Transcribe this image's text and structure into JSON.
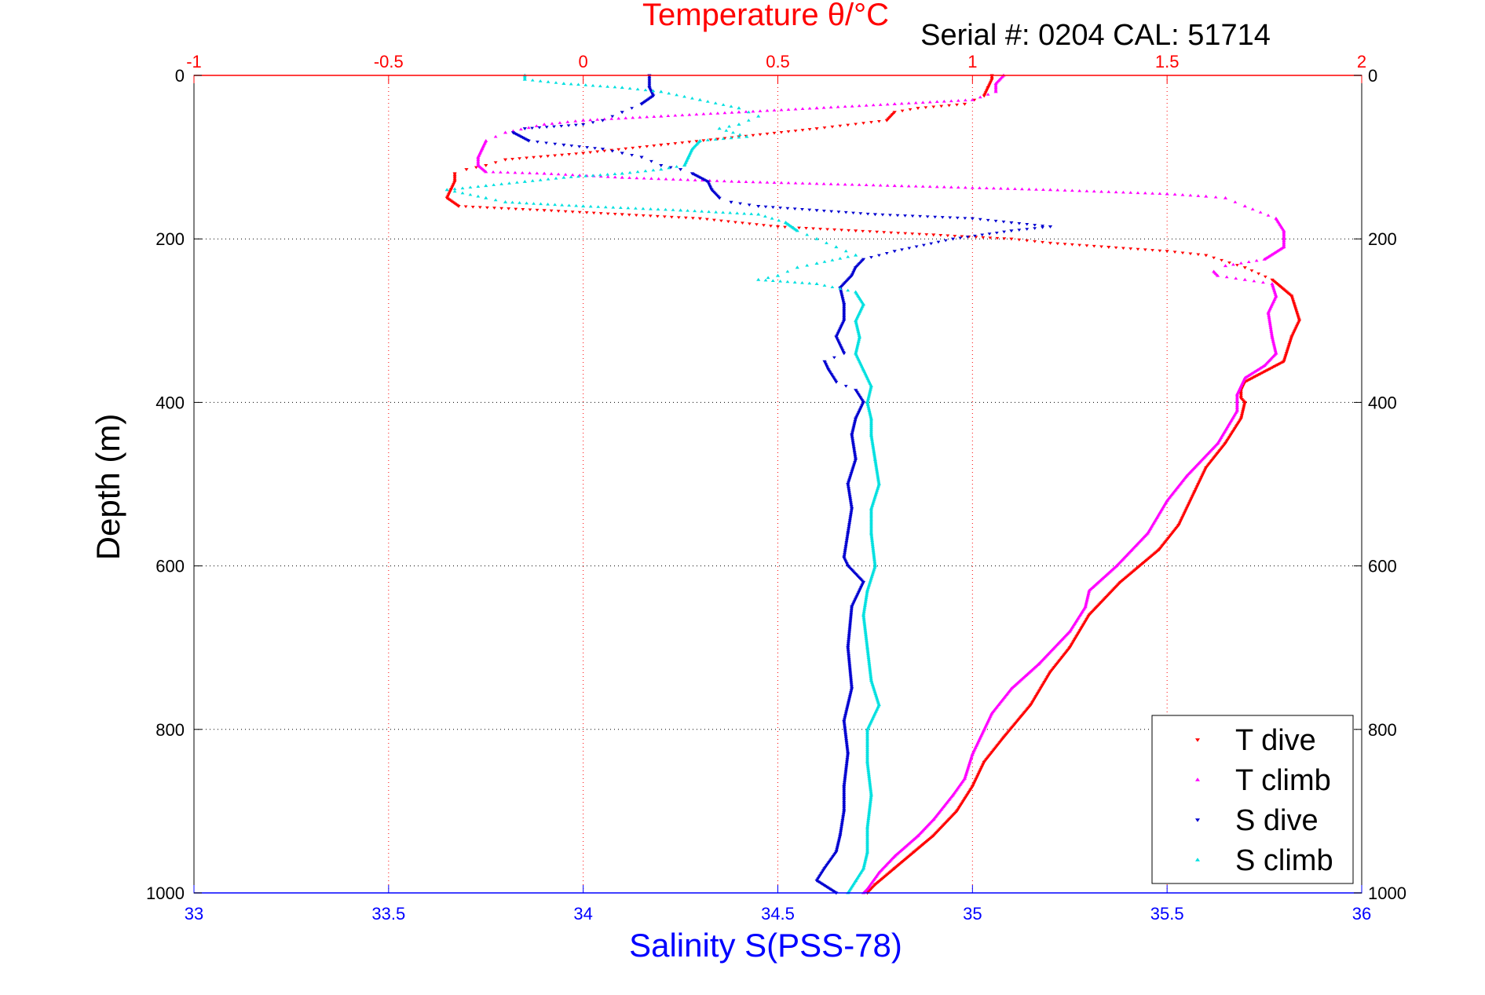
{
  "chart_data": {
    "type": "scatter",
    "title": "Temperature θ/°C",
    "subtitle": "Serial #: 0204  CAL: 51714",
    "xlabel": "Salinity S(PSS-78)",
    "ylabel": "Depth (m)",
    "x_bottom": {
      "label": "Salinity S(PSS-78)",
      "range": [
        33,
        36
      ],
      "ticks": [
        "33",
        "33.5",
        "34",
        "34.5",
        "35",
        "35.5",
        "36"
      ],
      "color": "#0000ff"
    },
    "x_top": {
      "label": "Temperature θ/°C",
      "range": [
        -1,
        2
      ],
      "ticks": [
        "-1",
        "-0.5",
        "0",
        "0.5",
        "1",
        "1.5",
        "2"
      ],
      "color": "#ff0000"
    },
    "y": {
      "range": [
        0,
        1000
      ],
      "reversed": true,
      "ticks": [
        "0",
        "200",
        "400",
        "600",
        "800",
        "1000"
      ]
    },
    "grid": true,
    "legend_position": "bottom-right",
    "series": [
      {
        "name": "T dive",
        "axis": "top",
        "color": "#ff0000",
        "marker": "triangle-down",
        "points": [
          [
            1.05,
            0
          ],
          [
            1.05,
            5
          ],
          [
            1.04,
            15
          ],
          [
            1.03,
            25
          ],
          [
            0.98,
            35
          ],
          [
            0.86,
            40
          ],
          [
            0.8,
            45
          ],
          [
            0.78,
            55
          ],
          [
            0.6,
            65
          ],
          [
            0.4,
            75
          ],
          [
            0.2,
            85
          ],
          [
            0.0,
            95
          ],
          [
            -0.2,
            103
          ],
          [
            -0.25,
            110
          ],
          [
            -0.3,
            115
          ],
          [
            -0.33,
            120
          ],
          [
            -0.33,
            130
          ],
          [
            -0.34,
            140
          ],
          [
            -0.35,
            150
          ],
          [
            -0.32,
            160
          ],
          [
            -0.1,
            165
          ],
          [
            0.1,
            170
          ],
          [
            0.3,
            175
          ],
          [
            0.5,
            185
          ],
          [
            0.7,
            190
          ],
          [
            0.9,
            195
          ],
          [
            1.1,
            200
          ],
          [
            1.2,
            205
          ],
          [
            1.35,
            210
          ],
          [
            1.5,
            215
          ],
          [
            1.6,
            220
          ],
          [
            1.7,
            235
          ],
          [
            1.77,
            250
          ],
          [
            1.82,
            270
          ],
          [
            1.84,
            300
          ],
          [
            1.82,
            320
          ],
          [
            1.8,
            350
          ],
          [
            1.7,
            375
          ],
          [
            1.69,
            385
          ],
          [
            1.69,
            395
          ],
          [
            1.7,
            400
          ],
          [
            1.69,
            420
          ],
          [
            1.65,
            450
          ],
          [
            1.6,
            480
          ],
          [
            1.57,
            510
          ],
          [
            1.53,
            550
          ],
          [
            1.48,
            580
          ],
          [
            1.38,
            620
          ],
          [
            1.3,
            660
          ],
          [
            1.25,
            700
          ],
          [
            1.2,
            730
          ],
          [
            1.15,
            770
          ],
          [
            1.08,
            810
          ],
          [
            1.03,
            840
          ],
          [
            1.0,
            870
          ],
          [
            0.96,
            900
          ],
          [
            0.9,
            930
          ],
          [
            0.85,
            950
          ],
          [
            0.8,
            970
          ],
          [
            0.75,
            990
          ],
          [
            0.73,
            1000
          ]
        ]
      },
      {
        "name": "T climb",
        "axis": "top",
        "color": "#ff00ff",
        "marker": "triangle-up",
        "points": [
          [
            1.08,
            0
          ],
          [
            1.06,
            10
          ],
          [
            1.06,
            20
          ],
          [
            1.0,
            30
          ],
          [
            0.8,
            35
          ],
          [
            0.6,
            40
          ],
          [
            0.4,
            45
          ],
          [
            0.2,
            50
          ],
          [
            0.0,
            55
          ],
          [
            -0.1,
            60
          ],
          [
            -0.2,
            70
          ],
          [
            -0.25,
            80
          ],
          [
            -0.26,
            90
          ],
          [
            -0.27,
            100
          ],
          [
            -0.27,
            110
          ],
          [
            -0.25,
            118
          ],
          [
            -0.1,
            120
          ],
          [
            0.1,
            125
          ],
          [
            0.4,
            130
          ],
          [
            0.8,
            135
          ],
          [
            1.2,
            140
          ],
          [
            1.5,
            145
          ],
          [
            1.6,
            148
          ],
          [
            1.65,
            150
          ],
          [
            1.7,
            160
          ],
          [
            1.78,
            175
          ],
          [
            1.8,
            190
          ],
          [
            1.8,
            210
          ],
          [
            1.75,
            225
          ],
          [
            1.65,
            233
          ],
          [
            1.62,
            240
          ],
          [
            1.63,
            245
          ],
          [
            1.7,
            250
          ],
          [
            1.77,
            255
          ],
          [
            1.78,
            270
          ],
          [
            1.76,
            290
          ],
          [
            1.77,
            320
          ],
          [
            1.78,
            340
          ],
          [
            1.75,
            355
          ],
          [
            1.7,
            370
          ],
          [
            1.68,
            390
          ],
          [
            1.68,
            410
          ],
          [
            1.63,
            450
          ],
          [
            1.55,
            490
          ],
          [
            1.5,
            520
          ],
          [
            1.45,
            560
          ],
          [
            1.37,
            600
          ],
          [
            1.3,
            630
          ],
          [
            1.29,
            650
          ],
          [
            1.25,
            680
          ],
          [
            1.17,
            720
          ],
          [
            1.1,
            750
          ],
          [
            1.05,
            780
          ],
          [
            1.03,
            800
          ],
          [
            1.0,
            830
          ],
          [
            0.98,
            860
          ],
          [
            0.95,
            880
          ],
          [
            0.9,
            910
          ],
          [
            0.86,
            930
          ],
          [
            0.8,
            955
          ],
          [
            0.76,
            975
          ],
          [
            0.73,
            995
          ],
          [
            0.72,
            1000
          ]
        ]
      },
      {
        "name": "S dive",
        "axis": "bottom",
        "color": "#0000d0",
        "marker": "triangle-down",
        "points": [
          [
            34.17,
            0
          ],
          [
            34.17,
            15
          ],
          [
            34.18,
            25
          ],
          [
            34.15,
            35
          ],
          [
            34.1,
            45
          ],
          [
            34.05,
            55
          ],
          [
            34.0,
            60
          ],
          [
            33.85,
            65
          ],
          [
            33.82,
            70
          ],
          [
            33.86,
            80
          ],
          [
            33.95,
            85
          ],
          [
            34.05,
            90
          ],
          [
            34.1,
            95
          ],
          [
            34.15,
            100
          ],
          [
            34.2,
            110
          ],
          [
            34.25,
            115
          ],
          [
            34.28,
            120
          ],
          [
            34.32,
            130
          ],
          [
            34.33,
            140
          ],
          [
            34.35,
            150
          ],
          [
            34.38,
            155
          ],
          [
            34.45,
            160
          ],
          [
            34.6,
            165
          ],
          [
            34.75,
            170
          ],
          [
            35.0,
            175
          ],
          [
            35.1,
            180
          ],
          [
            35.2,
            185
          ],
          [
            35.1,
            190
          ],
          [
            34.95,
            200
          ],
          [
            34.8,
            215
          ],
          [
            34.72,
            225
          ],
          [
            34.7,
            235
          ],
          [
            34.69,
            245
          ],
          [
            34.66,
            260
          ],
          [
            34.67,
            280
          ],
          [
            34.67,
            300
          ],
          [
            34.65,
            320
          ],
          [
            34.67,
            340
          ],
          [
            34.62,
            350
          ],
          [
            34.63,
            360
          ],
          [
            34.65,
            375
          ],
          [
            34.7,
            385
          ],
          [
            34.72,
            400
          ],
          [
            34.7,
            420
          ],
          [
            34.69,
            440
          ],
          [
            34.7,
            470
          ],
          [
            34.68,
            500
          ],
          [
            34.69,
            530
          ],
          [
            34.68,
            560
          ],
          [
            34.67,
            590
          ],
          [
            34.68,
            600
          ],
          [
            34.72,
            620
          ],
          [
            34.69,
            650
          ],
          [
            34.68,
            700
          ],
          [
            34.69,
            750
          ],
          [
            34.67,
            790
          ],
          [
            34.68,
            830
          ],
          [
            34.67,
            870
          ],
          [
            34.67,
            900
          ],
          [
            34.66,
            930
          ],
          [
            34.65,
            950
          ],
          [
            34.62,
            970
          ],
          [
            34.6,
            985
          ],
          [
            34.65,
            1000
          ]
        ]
      },
      {
        "name": "S climb",
        "axis": "bottom",
        "color": "#00e0e0",
        "marker": "triangle-up",
        "points": [
          [
            33.85,
            0
          ],
          [
            33.85,
            5
          ],
          [
            33.95,
            10
          ],
          [
            34.1,
            15
          ],
          [
            34.2,
            20
          ],
          [
            34.3,
            30
          ],
          [
            34.4,
            40
          ],
          [
            34.45,
            50
          ],
          [
            34.4,
            60
          ],
          [
            34.35,
            65
          ],
          [
            34.42,
            75
          ],
          [
            34.3,
            80
          ],
          [
            34.28,
            90
          ],
          [
            34.27,
            100
          ],
          [
            34.26,
            110
          ],
          [
            34.2,
            115
          ],
          [
            34.1,
            120
          ],
          [
            33.95,
            125
          ],
          [
            33.85,
            130
          ],
          [
            33.75,
            135
          ],
          [
            33.65,
            140
          ],
          [
            33.75,
            150
          ],
          [
            33.8,
            155
          ],
          [
            34.0,
            160
          ],
          [
            34.25,
            165
          ],
          [
            34.45,
            170
          ],
          [
            34.52,
            180
          ],
          [
            34.55,
            190
          ],
          [
            34.6,
            200
          ],
          [
            34.65,
            210
          ],
          [
            34.7,
            220
          ],
          [
            34.6,
            230
          ],
          [
            34.55,
            235
          ],
          [
            34.5,
            245
          ],
          [
            34.45,
            250
          ],
          [
            34.6,
            255
          ],
          [
            34.7,
            265
          ],
          [
            34.72,
            280
          ],
          [
            34.7,
            300
          ],
          [
            34.71,
            320
          ],
          [
            34.7,
            340
          ],
          [
            34.72,
            360
          ],
          [
            34.74,
            380
          ],
          [
            34.73,
            400
          ],
          [
            34.74,
            420
          ],
          [
            34.74,
            440
          ],
          [
            34.75,
            470
          ],
          [
            34.76,
            500
          ],
          [
            34.74,
            530
          ],
          [
            34.74,
            560
          ],
          [
            34.75,
            600
          ],
          [
            34.73,
            630
          ],
          [
            34.72,
            660
          ],
          [
            34.73,
            700
          ],
          [
            34.74,
            740
          ],
          [
            34.76,
            770
          ],
          [
            34.73,
            800
          ],
          [
            34.73,
            840
          ],
          [
            34.74,
            880
          ],
          [
            34.73,
            920
          ],
          [
            34.73,
            950
          ],
          [
            34.72,
            970
          ],
          [
            34.7,
            985
          ],
          [
            34.68,
            1000
          ]
        ]
      }
    ]
  }
}
